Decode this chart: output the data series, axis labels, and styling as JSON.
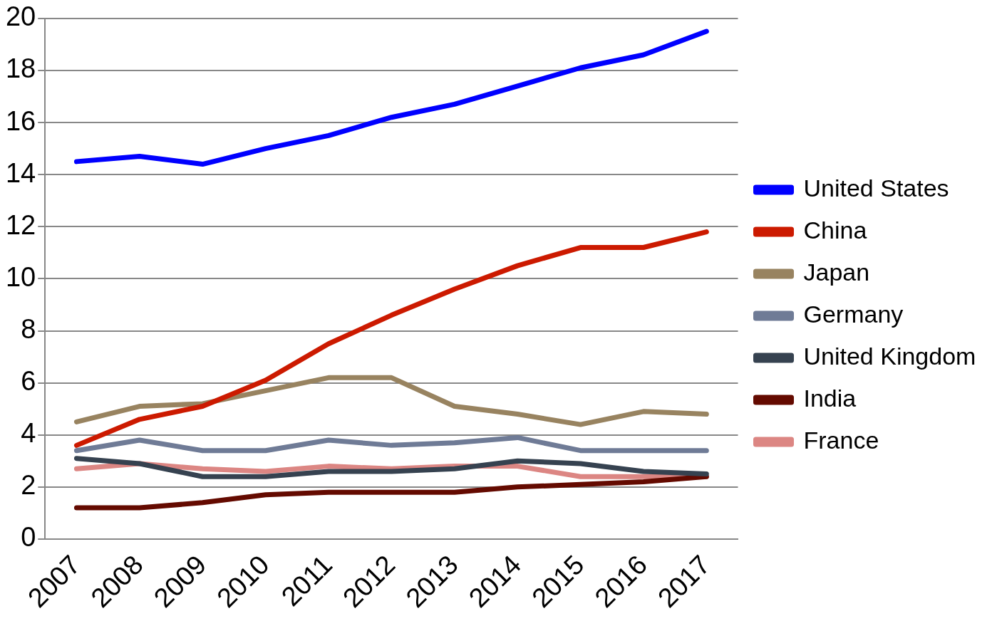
{
  "chart_data": {
    "type": "line",
    "categories": [
      "2007",
      "2008",
      "2009",
      "2010",
      "2011",
      "2012",
      "2013",
      "2014",
      "2015",
      "2016",
      "2017"
    ],
    "series": [
      {
        "name": "United States",
        "color": "#0000ff",
        "values": [
          14.5,
          14.7,
          14.4,
          15.0,
          15.5,
          16.2,
          16.7,
          17.4,
          18.1,
          18.6,
          19.5
        ]
      },
      {
        "name": "China",
        "color": "#cc1a00",
        "values": [
          3.6,
          4.6,
          5.1,
          6.1,
          7.5,
          8.6,
          9.6,
          10.5,
          11.2,
          11.2,
          11.8
        ]
      },
      {
        "name": "Japan",
        "color": "#988360",
        "values": [
          4.5,
          5.1,
          5.2,
          5.7,
          6.2,
          6.2,
          5.1,
          4.8,
          4.4,
          4.9,
          4.8
        ]
      },
      {
        "name": "Germany",
        "color": "#6f7b96",
        "values": [
          3.4,
          3.8,
          3.4,
          3.4,
          3.8,
          3.6,
          3.7,
          3.9,
          3.4,
          3.4,
          3.4
        ]
      },
      {
        "name": "United Kingdom",
        "color": "#364250",
        "values": [
          3.1,
          2.9,
          2.4,
          2.4,
          2.6,
          2.6,
          2.7,
          3.0,
          2.9,
          2.6,
          2.5
        ]
      },
      {
        "name": "India",
        "color": "#640a00",
        "values": [
          1.2,
          1.2,
          1.4,
          1.7,
          1.8,
          1.8,
          1.8,
          2.0,
          2.1,
          2.2,
          2.4
        ]
      },
      {
        "name": "France",
        "color": "#dc8683",
        "values": [
          2.7,
          2.9,
          2.7,
          2.6,
          2.8,
          2.7,
          2.8,
          2.8,
          2.4,
          2.4,
          2.4
        ]
      }
    ],
    "ylim": [
      0,
      20
    ],
    "yticks": [
      0,
      2,
      4,
      6,
      8,
      10,
      12,
      14,
      16,
      18,
      20
    ],
    "grid": "y",
    "legend": "right",
    "marker": "none",
    "line_style": "solid"
  }
}
